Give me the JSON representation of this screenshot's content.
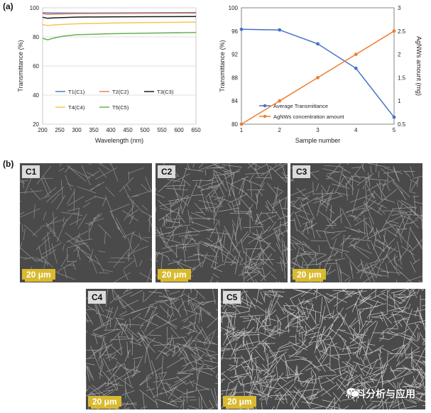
{
  "panel_a_label": "(a)",
  "panel_b_label": "(b)",
  "chart_data": [
    {
      "type": "line",
      "xlabel": "Wavelength (nm)",
      "ylabel": "Transmittance (%)",
      "xlim": [
        200,
        650
      ],
      "ylim": [
        20,
        100
      ],
      "xticks": [
        200,
        250,
        300,
        350,
        400,
        450,
        500,
        550,
        600,
        650
      ],
      "yticks": [
        20,
        40,
        60,
        80,
        100
      ],
      "legend_position": "lower-left",
      "series": [
        {
          "name": "T1(C1)",
          "color": "#4f81bd",
          "x": [
            200,
            215,
            230,
            260,
            300,
            400,
            500,
            650
          ],
          "values": [
            96.6,
            96.5,
            96.4,
            96.4,
            96.4,
            96.5,
            96.6,
            96.8
          ]
        },
        {
          "name": "T2(C2)",
          "color": "#e8835a",
          "x": [
            200,
            215,
            230,
            260,
            300,
            400,
            500,
            650
          ],
          "values": [
            96.0,
            95.4,
            95.6,
            95.8,
            96.0,
            96.1,
            96.2,
            96.3
          ]
        },
        {
          "name": "T3(C3)",
          "color": "#1a1a1a",
          "x": [
            200,
            215,
            230,
            260,
            300,
            400,
            500,
            650
          ],
          "values": [
            93.5,
            92.8,
            93.0,
            93.3,
            93.6,
            93.8,
            93.9,
            94.0
          ]
        },
        {
          "name": "T4(C4)",
          "color": "#f2c94c",
          "x": [
            200,
            215,
            230,
            260,
            300,
            400,
            500,
            650
          ],
          "values": [
            88.5,
            87.8,
            88.2,
            88.6,
            89.0,
            89.5,
            89.8,
            90.2
          ]
        },
        {
          "name": "T5(C5)",
          "color": "#6ab04c",
          "x": [
            200,
            215,
            230,
            260,
            300,
            400,
            500,
            650
          ],
          "values": [
            79.0,
            78.0,
            79.0,
            80.5,
            81.5,
            82.2,
            82.6,
            83.0
          ]
        }
      ]
    },
    {
      "type": "line",
      "xlabel": "Sample number",
      "ylabel": "Transmittance (%)",
      "y2label": "AgNWs amount (mg)",
      "xlim": [
        1,
        5
      ],
      "ylim": [
        80,
        100
      ],
      "y2lim": [
        0.5,
        3
      ],
      "xticks": [
        1,
        2,
        3,
        4,
        5
      ],
      "yticks": [
        80,
        84,
        88,
        92,
        96,
        100
      ],
      "y2ticks": [
        0.5,
        1,
        1.5,
        2,
        2.5,
        3
      ],
      "legend_position": "bottom-center",
      "x": [
        1,
        2,
        3,
        4,
        5
      ],
      "series": [
        {
          "name": "Average Transmittance",
          "color": "#4472c4",
          "axis": "left",
          "values": [
            96.3,
            96.2,
            93.8,
            89.6,
            81.2
          ]
        },
        {
          "name": "AgNWs concentration amount",
          "color": "#ed7d31",
          "axis": "right",
          "values": [
            0.5,
            1.0,
            1.5,
            2.0,
            2.5
          ]
        }
      ]
    }
  ],
  "sem_images": [
    {
      "label": "C1",
      "scale": "20 μm",
      "density": 0.18
    },
    {
      "label": "C2",
      "scale": "20 μm",
      "density": 0.45
    },
    {
      "label": "C3",
      "scale": "20 μm",
      "density": 0.4
    },
    {
      "label": "C4",
      "scale": "20 μm",
      "density": 0.45
    },
    {
      "label": "C5",
      "scale": "20 μm",
      "density": 1.0
    }
  ],
  "watermark": "材料分析与应用",
  "colors": {
    "sem_background": "#4a4a4a",
    "scale_bar": "#d9ba2f"
  }
}
